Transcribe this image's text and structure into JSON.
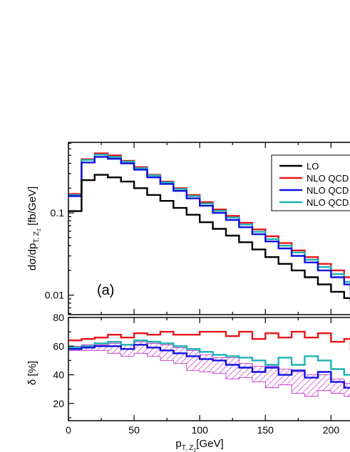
{
  "chart_data": [
    {
      "type": "line",
      "step": true,
      "log_y": true,
      "xlim": [
        0,
        215
      ],
      "ylim": [
        0.0058,
        0.72
      ],
      "x_edges": [
        0,
        10,
        20,
        30,
        40,
        50,
        60,
        70,
        80,
        90,
        100,
        110,
        120,
        130,
        140,
        150,
        160,
        170,
        180,
        190,
        200,
        210,
        215
      ],
      "y_ticks": [
        0.01,
        0.1
      ],
      "y_tick_labels": [
        "0.01",
        "0.1"
      ],
      "ylabel_main": "dσ/dp",
      "ylabel_sub": "T, Z",
      "ylabel_subsub": "2",
      "ylabel_unit": " [fb/GeV]",
      "panel_label": "(a)",
      "legend_position": "top-right",
      "series": [
        {
          "name": "LO",
          "color": "#000000",
          "values": [
            0.105,
            0.25,
            0.29,
            0.27,
            0.24,
            0.2,
            0.165,
            0.14,
            0.115,
            0.095,
            0.077,
            0.064,
            0.053,
            0.044,
            0.036,
            0.029,
            0.024,
            0.02,
            0.0165,
            0.0135,
            0.011,
            0.0092,
            0.0082
          ]
        },
        {
          "name": "NLO QCD",
          "color": "#e8141a",
          "values": [
            0.17,
            0.45,
            0.53,
            0.5,
            0.43,
            0.36,
            0.29,
            0.24,
            0.2,
            0.165,
            0.135,
            0.11,
            0.092,
            0.076,
            0.063,
            0.052,
            0.043,
            0.035,
            0.029,
            0.024,
            0.02,
            0.0165,
            0.0125
          ]
        },
        {
          "name": "NLO QCD",
          "color": "#1010e0",
          "values": [
            0.16,
            0.41,
            0.48,
            0.455,
            0.4,
            0.335,
            0.27,
            0.225,
            0.185,
            0.15,
            0.122,
            0.1,
            0.082,
            0.067,
            0.055,
            0.045,
            0.037,
            0.03,
            0.025,
            0.02,
            0.0165,
            0.0135,
            0.0102
          ]
        },
        {
          "name": "NLO QCD",
          "color": "#1cb2b2",
          "values": [
            0.165,
            0.44,
            0.51,
            0.48,
            0.42,
            0.35,
            0.285,
            0.235,
            0.195,
            0.16,
            0.13,
            0.106,
            0.088,
            0.072,
            0.059,
            0.048,
            0.04,
            0.033,
            0.027,
            0.022,
            0.018,
            0.0145,
            0.0112
          ]
        }
      ]
    },
    {
      "type": "line",
      "step": true,
      "xlim": [
        0,
        215
      ],
      "ylim": [
        8,
        80
      ],
      "x_edges": [
        0,
        10,
        20,
        30,
        40,
        50,
        60,
        70,
        80,
        90,
        100,
        110,
        120,
        130,
        140,
        150,
        160,
        170,
        180,
        190,
        200,
        210,
        215
      ],
      "x_ticks": [
        0,
        50,
        100,
        150,
        200
      ],
      "x_tick_labels": [
        "0",
        "50",
        "100",
        "150",
        "200"
      ],
      "y_ticks": [
        20,
        40,
        60,
        80
      ],
      "y_tick_labels": [
        "20",
        "40",
        "60",
        "80"
      ],
      "xlabel_main": "p",
      "xlabel_sub": "T, Z",
      "xlabel_subsub": "2",
      "xlabel_unit": "[GeV]",
      "ylabel": "δ [%]",
      "band": {
        "color": "#c21fc2",
        "lower": [
          57,
          57,
          57,
          55,
          53,
          55,
          53,
          50,
          48,
          43,
          42,
          41,
          37,
          38,
          35,
          31,
          33,
          27,
          25,
          29,
          27,
          25,
          25
        ],
        "upper": [
          60,
          61,
          61,
          62,
          61,
          63,
          62,
          61,
          59,
          57,
          54,
          52,
          52,
          48,
          46,
          46,
          44,
          42,
          40,
          40,
          37,
          34,
          34
        ]
      },
      "series": [
        {
          "name": "NLO QCD",
          "color": "#e8141a",
          "values": [
            64,
            65,
            66,
            68,
            66,
            69,
            68,
            70,
            68,
            68,
            70,
            70,
            67,
            70,
            65,
            69,
            66,
            70,
            66,
            69,
            63,
            65,
            57
          ]
        },
        {
          "name": "NLO QCD",
          "color": "#1010e0",
          "values": [
            58,
            59,
            60,
            60,
            58,
            61,
            59,
            57,
            55,
            53,
            51,
            50,
            47,
            45,
            42,
            45,
            40,
            43,
            38,
            42,
            35,
            31,
            30
          ]
        },
        {
          "name": "NLO QCD",
          "color": "#1cb2b2",
          "values": [
            59,
            60,
            62,
            63,
            61,
            64,
            63,
            62,
            60,
            58,
            56,
            54,
            53,
            52,
            50,
            47,
            52,
            47,
            53,
            50,
            44,
            40,
            40
          ]
        }
      ]
    }
  ]
}
